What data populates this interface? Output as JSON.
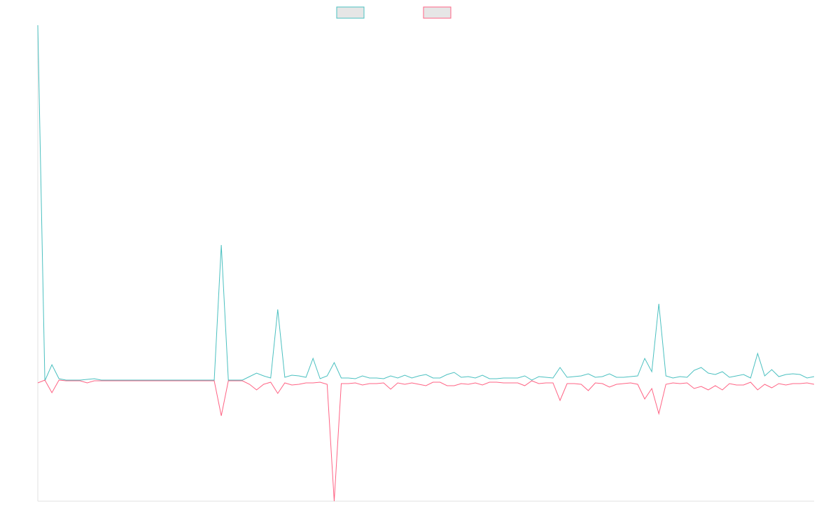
{
  "chart_data": {
    "type": "line",
    "ylim": [
      -17.2,
      50.8
    ],
    "series": [
      {
        "color": "#4bc0c0",
        "values": [
          50.8,
          0,
          2.3,
          0.3,
          0.1,
          0.1,
          0.1,
          0.2,
          0.3,
          0.1,
          0.1,
          0.1,
          0.1,
          0.1,
          0.1,
          0.1,
          0.1,
          0.1,
          0.1,
          0.1,
          0.1,
          0.1,
          0.1,
          0.1,
          0.1,
          0.1,
          19.4,
          0.1,
          0.1,
          0.1,
          0.6,
          1.1,
          0.7,
          0.4,
          10.2,
          0.5,
          0.8,
          0.7,
          0.5,
          3.2,
          0.3,
          0.7,
          2.6,
          0.4,
          0.4,
          0.3,
          0.7,
          0.4,
          0.4,
          0.3,
          0.7,
          0.4,
          0.8,
          0.4,
          0.7,
          0.9,
          0.4,
          0.4,
          0.9,
          1.2,
          0.5,
          0.6,
          0.4,
          0.8,
          0.3,
          0.3,
          0.4,
          0.4,
          0.4,
          0.7,
          0.1,
          0.6,
          0.5,
          0.4,
          1.9,
          0.5,
          0.6,
          0.7,
          1.0,
          0.5,
          0.6,
          1.0,
          0.5,
          0.5,
          0.6,
          0.7,
          3.2,
          1.3,
          11,
          0.7,
          0.4,
          0.6,
          0.5,
          1.5,
          1.9,
          1.1,
          0.9,
          1.3,
          0.5,
          0.7,
          0.9,
          0.4,
          3.9,
          0.7,
          1.6,
          0.6,
          0.9,
          1.0,
          0.9,
          0.4,
          0.6
        ]
      },
      {
        "color": "#ff6384",
        "values": [
          -0.3,
          0.1,
          -1.7,
          0.1,
          0,
          0,
          0,
          -0.3,
          0,
          0,
          0,
          0,
          0,
          0,
          0,
          0,
          0,
          0,
          0,
          0,
          0,
          0,
          0,
          0,
          0,
          0,
          -5,
          0,
          0,
          0,
          -0.5,
          -1.3,
          -0.5,
          -0.2,
          -1.8,
          -0.3,
          -0.6,
          -0.5,
          -0.3,
          -0.3,
          -0.2,
          -0.5,
          -17.2,
          -0.4,
          -0.4,
          -0.3,
          -0.6,
          -0.4,
          -0.4,
          -0.3,
          -1.2,
          -0.3,
          -0.5,
          -0.3,
          -0.5,
          -0.7,
          -0.2,
          -0.2,
          -0.7,
          -0.7,
          -0.4,
          -0.5,
          -0.3,
          -0.6,
          -0.2,
          -0.2,
          -0.3,
          -0.3,
          -0.3,
          -0.7,
          0,
          -0.4,
          -0.3,
          -0.3,
          -2.8,
          -0.4,
          -0.4,
          -0.5,
          -1.4,
          -0.3,
          -0.4,
          -0.9,
          -0.5,
          -0.4,
          -0.3,
          -0.5,
          -2.6,
          -1.1,
          -4.7,
          -0.5,
          -0.3,
          -0.4,
          -0.3,
          -1.1,
          -0.8,
          -1.3,
          -0.7,
          -1.3,
          -0.4,
          -0.6,
          -0.6,
          -0.2,
          -1.3,
          -0.5,
          -1.0,
          -0.4,
          -0.6,
          -0.4,
          -0.4,
          -0.3,
          -0.5
        ]
      }
    ]
  }
}
